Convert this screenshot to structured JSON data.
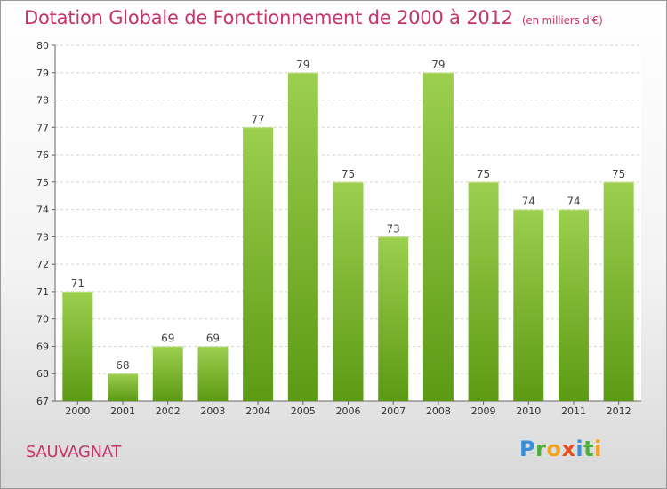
{
  "page": {
    "title": "Dotation Globale de Fonctionnement de 2000 à 2012",
    "unit_note": "(en milliers d'€)",
    "commune": "SAUVAGNAT",
    "logo": "Proxiti"
  },
  "colors": {
    "title": "#c8336a",
    "bar_light": "#9ccf4e",
    "bar_dark": "#5c9a14",
    "grid": "#d4d4d4"
  },
  "chart_data": {
    "type": "bar",
    "title": "Dotation Globale de Fonctionnement de 2000 à 2012",
    "subtitle": "(en milliers d'€)",
    "xlabel": "",
    "ylabel": "",
    "categories": [
      "2000",
      "2001",
      "2002",
      "2003",
      "2004",
      "2005",
      "2006",
      "2007",
      "2008",
      "2009",
      "2010",
      "2011",
      "2012"
    ],
    "values": [
      71,
      68,
      69,
      69,
      77,
      79,
      75,
      73,
      79,
      75,
      74,
      74,
      75
    ],
    "ylim": [
      67,
      80
    ],
    "yticks": [
      67,
      68,
      69,
      70,
      71,
      72,
      73,
      74,
      75,
      76,
      77,
      78,
      79,
      80
    ],
    "grid": "horizontal dashed",
    "legend": "none"
  }
}
